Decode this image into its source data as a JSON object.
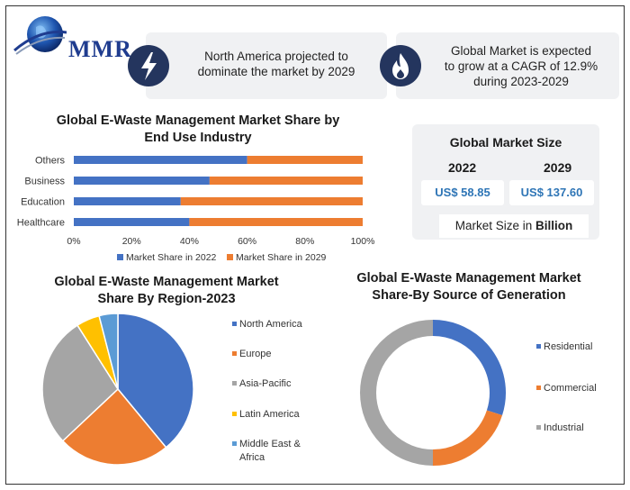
{
  "logo": {
    "text": "MMR"
  },
  "highlights": [
    {
      "icon": "lightning-icon",
      "text_line1": "North America projected to",
      "text_line2": "dominate the market by 2029"
    },
    {
      "icon": "flame-icon",
      "text_line1": "Global Market is expected",
      "text_line2": "to grow at a CAGR of 12.9%",
      "text_line3": "during 2023-2029"
    }
  ],
  "market_size": {
    "title": "Global Market Size",
    "years": [
      "2022",
      "2029"
    ],
    "values": [
      "US$ 58.85",
      "US$ 137.60"
    ],
    "unit_prefix": "Market Size in ",
    "unit_bold": "Billion"
  },
  "colors": {
    "blue": "#4472c4",
    "orange": "#ed7d31",
    "gray": "#a5a5a5",
    "yellow": "#ffc000",
    "lightblue": "#5b9bd5"
  },
  "chart_data": [
    {
      "type": "bar",
      "orientation": "horizontal-stacked-100",
      "title_line1": "Global E-Waste Management Market Share by",
      "title_line2": "End Use Industry",
      "categories": [
        "Others",
        "Business",
        "Education",
        "Healthcare"
      ],
      "series": [
        {
          "name": "Market Share in 2022",
          "values": [
            60,
            47,
            37,
            40
          ]
        },
        {
          "name": "Market Share in 2029",
          "values": [
            40,
            53,
            63,
            60
          ]
        }
      ],
      "xlim": [
        0,
        100
      ],
      "xticks": [
        "0%",
        "20%",
        "40%",
        "60%",
        "80%",
        "100%"
      ],
      "legend": "bottom"
    },
    {
      "type": "pie",
      "title_line1": "Global E-Waste Management Market",
      "title_line2": "Share By Region-2023",
      "labels": [
        "North America",
        "Europe",
        "Asia-Pacific",
        "Latin America",
        "Middle East &",
        "Africa"
      ],
      "slices": [
        {
          "name": "North America",
          "value": 39
        },
        {
          "name": "Europe",
          "value": 24
        },
        {
          "name": "Asia-Pacific",
          "value": 28
        },
        {
          "name": "Latin America",
          "value": 5
        },
        {
          "name": "Middle East & Africa",
          "value": 4
        }
      ],
      "legend": "right"
    },
    {
      "type": "pie",
      "variant": "donut",
      "title_line1": "Global E-Waste Management Market",
      "title_line2": "Share-By Source of Generation",
      "slices": [
        {
          "name": "Residential",
          "value": 30
        },
        {
          "name": "Commercial",
          "value": 20
        },
        {
          "name": "Industrial",
          "value": 50
        }
      ],
      "legend": "right"
    }
  ]
}
